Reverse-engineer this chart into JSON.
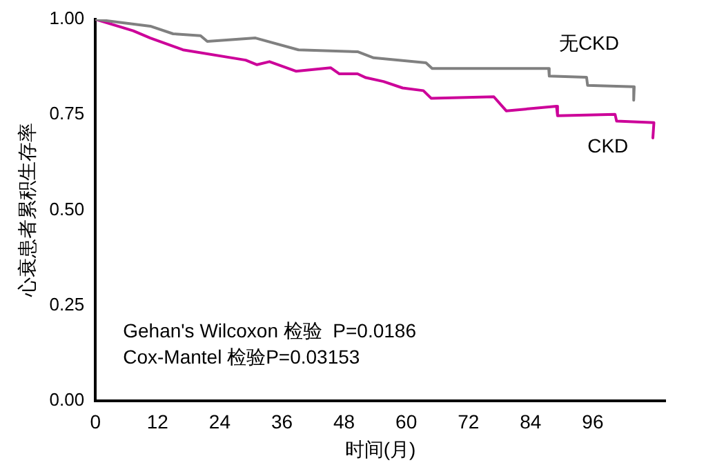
{
  "chart_data": {
    "type": "line",
    "xlabel": "时间(月)",
    "ylabel": "心衰患者累积生存率",
    "annotations": [
      "Gehan's Wilcoxon 检验  P=0.0186",
      "Cox-Mantel 检验P=0.03153"
    ],
    "xlim": [
      0,
      110
    ],
    "xticks": [
      0,
      12,
      24,
      36,
      48,
      60,
      72,
      84,
      96
    ],
    "ylim": [
      0,
      1
    ],
    "yticks": [
      {
        "value": 0,
        "label": "0.00"
      },
      {
        "value": 0.25,
        "label": "0.25"
      },
      {
        "value": 0.5,
        "label": "0.50"
      },
      {
        "value": 0.75,
        "label": "0.75"
      },
      {
        "value": 1,
        "label": "1.00"
      }
    ],
    "grid": false,
    "legend": false,
    "marker": "none",
    "line_style": "solid",
    "series": [
      {
        "name": "无CKD",
        "color": "#808080",
        "x": [
          0,
          10.6,
          15,
          20.3,
          21.6,
          30.9,
          39.2,
          50.6,
          53.7,
          63.8,
          65,
          87.5,
          87.6,
          94.8,
          95,
          104,
          103.9
        ],
        "values": [
          1,
          0.982,
          0.962,
          0.957,
          0.942,
          0.951,
          0.92,
          0.915,
          0.899,
          0.886,
          0.871,
          0.871,
          0.851,
          0.848,
          0.827,
          0.823,
          0.788
        ]
      },
      {
        "name": "CKD",
        "color": "#cc0099",
        "x": [
          0,
          7.3,
          10.6,
          16.9,
          29,
          31.2,
          33.6,
          38.7,
          45.4,
          47.1,
          50.6,
          52.2,
          55.6,
          59.3,
          63.3,
          64.8,
          76.9,
          79.3,
          89,
          89.2,
          100.3,
          100.6,
          107.8,
          107.6
        ],
        "values": [
          1,
          0.97,
          0.951,
          0.92,
          0.893,
          0.881,
          0.889,
          0.864,
          0.873,
          0.857,
          0.857,
          0.847,
          0.837,
          0.82,
          0.813,
          0.793,
          0.797,
          0.76,
          0.772,
          0.747,
          0.751,
          0.733,
          0.729,
          0.689
        ]
      }
    ]
  }
}
